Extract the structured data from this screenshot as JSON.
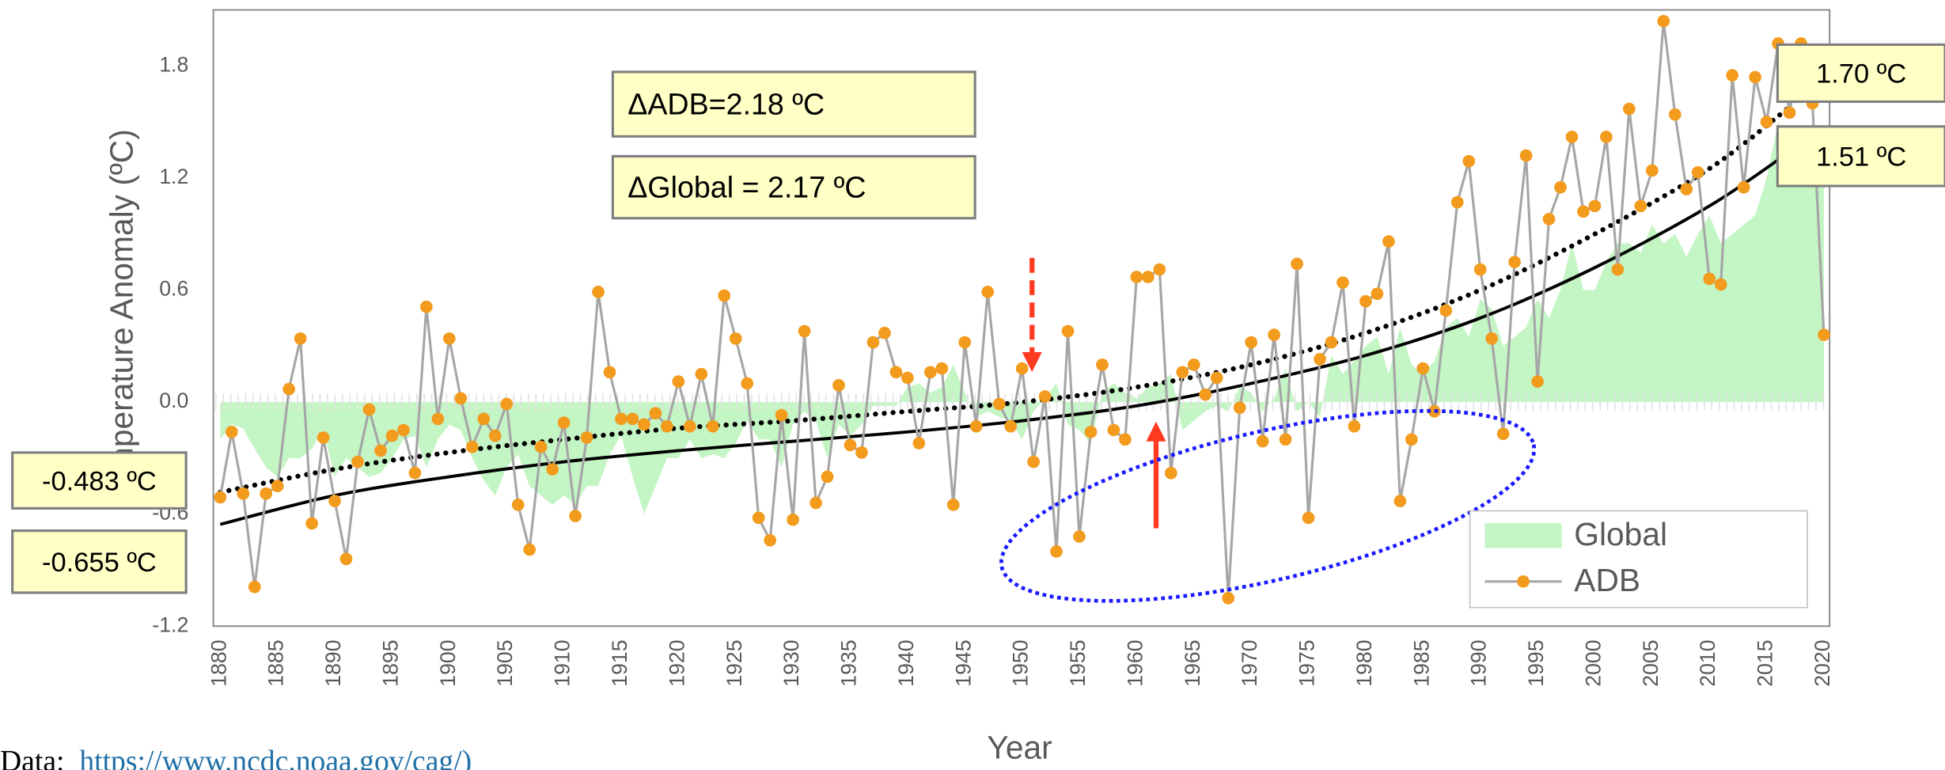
{
  "chart_data": {
    "type": "line",
    "y_label": "Temperature Anomaly (ºC)",
    "x_label": "Year",
    "xlim": [
      1879.4,
      2020.5
    ],
    "ylim": [
      -1.2,
      2.1
    ],
    "xticks": [
      1880,
      1885,
      1890,
      1895,
      1900,
      1905,
      1910,
      1915,
      1920,
      1925,
      1930,
      1935,
      1940,
      1945,
      1950,
      1955,
      1960,
      1965,
      1970,
      1975,
      1980,
      1985,
      1990,
      1995,
      2000,
      2005,
      2010,
      2015,
      2020
    ],
    "yticks": [
      -1.2,
      -0.6,
      {
        "value": 0,
        "label": "0.0"
      },
      0.6,
      1.2,
      1.8
    ],
    "grid": false,
    "legend": "lower right",
    "x": [
      1880,
      1881,
      1882,
      1883,
      1884,
      1885,
      1886,
      1887,
      1888,
      1889,
      1890,
      1891,
      1892,
      1893,
      1894,
      1895,
      1896,
      1897,
      1898,
      1899,
      1900,
      1901,
      1902,
      1903,
      1904,
      1905,
      1906,
      1907,
      1908,
      1909,
      1910,
      1911,
      1912,
      1913,
      1914,
      1915,
      1916,
      1917,
      1918,
      1919,
      1920,
      1921,
      1922,
      1923,
      1924,
      1925,
      1926,
      1927,
      1928,
      1929,
      1930,
      1931,
      1932,
      1933,
      1934,
      1935,
      1936,
      1937,
      1938,
      1939,
      1940,
      1941,
      1942,
      1943,
      1944,
      1945,
      1946,
      1947,
      1948,
      1949,
      1950,
      1951,
      1952,
      1953,
      1954,
      1955,
      1956,
      1957,
      1958,
      1959,
      1960,
      1961,
      1962,
      1963,
      1964,
      1965,
      1966,
      1967,
      1968,
      1969,
      1970,
      1971,
      1972,
      1973,
      1974,
      1975,
      1976,
      1977,
      1978,
      1979,
      1980,
      1981,
      1982,
      1983,
      1984,
      1985,
      1986,
      1987,
      1988,
      1989,
      1990,
      1991,
      1992,
      1993,
      1994,
      1995,
      1996,
      1997,
      1998,
      1999,
      2000,
      2001,
      2002,
      2003,
      2004,
      2005,
      2006,
      2007,
      2008,
      2009,
      2010,
      2011,
      2012,
      2013,
      2014,
      2015,
      2016,
      2017,
      2018,
      2019,
      2020
    ],
    "series": [
      {
        "name": "Global",
        "type": "area",
        "color": "#c4f5c4",
        "values": [
          -0.2,
          -0.12,
          -0.14,
          -0.25,
          -0.35,
          -0.4,
          -0.3,
          -0.3,
          -0.25,
          -0.15,
          -0.4,
          -0.3,
          -0.35,
          -0.4,
          -0.38,
          -0.3,
          -0.2,
          -0.18,
          -0.35,
          -0.2,
          -0.12,
          -0.15,
          -0.3,
          -0.42,
          -0.5,
          -0.35,
          -0.28,
          -0.45,
          -0.5,
          -0.55,
          -0.5,
          -0.55,
          -0.45,
          -0.45,
          -0.28,
          -0.18,
          -0.4,
          -0.6,
          -0.45,
          -0.3,
          -0.3,
          -0.2,
          -0.3,
          -0.28,
          -0.3,
          -0.22,
          -0.1,
          -0.2,
          -0.2,
          -0.35,
          -0.12,
          -0.05,
          -0.1,
          -0.3,
          -0.12,
          -0.18,
          -0.12,
          -0.02,
          -0.02,
          -0.02,
          0.08,
          0.1,
          0.05,
          0.08,
          0.2,
          0.05,
          -0.08,
          -0.05,
          -0.08,
          -0.1,
          -0.2,
          -0.05,
          0.02,
          0.1,
          -0.12,
          -0.15,
          -0.22,
          0.05,
          0.1,
          0.05,
          0.02,
          0.08,
          0.1,
          0.15,
          -0.15,
          -0.1,
          -0.05,
          -0.02,
          -0.05,
          0.08,
          0.05,
          -0.05,
          0.02,
          0.18,
          -0.05,
          0.0,
          -0.08,
          0.25,
          0.15,
          0.22,
          0.3,
          0.35,
          0.15,
          0.4,
          0.2,
          0.15,
          0.22,
          0.4,
          0.45,
          0.35,
          0.55,
          0.5,
          0.3,
          0.35,
          0.4,
          0.55,
          0.45,
          0.6,
          0.85,
          0.6,
          0.6,
          0.75,
          0.85,
          0.85,
          0.8,
          0.95,
          0.85,
          0.9,
          0.78,
          0.9,
          1.0,
          0.85,
          0.9,
          0.95,
          1.0,
          1.2,
          1.5,
          1.4,
          1.25,
          1.4,
          1.45
        ]
      },
      {
        "name": "ADB",
        "type": "line",
        "color": "#a6a6a6",
        "marker_color": "#f29b1d",
        "values": [
          -0.51,
          -0.16,
          -0.49,
          -0.99,
          -0.49,
          -0.45,
          0.07,
          0.34,
          -0.65,
          -0.19,
          -0.53,
          -0.84,
          -0.32,
          -0.04,
          -0.26,
          -0.18,
          -0.15,
          -0.38,
          0.51,
          -0.09,
          0.34,
          0.02,
          -0.24,
          -0.09,
          -0.18,
          -0.01,
          -0.55,
          -0.79,
          -0.24,
          -0.36,
          -0.11,
          -0.61,
          -0.19,
          0.59,
          0.16,
          -0.09,
          -0.09,
          -0.12,
          -0.06,
          -0.13,
          0.11,
          -0.13,
          0.15,
          -0.13,
          0.57,
          0.34,
          0.1,
          -0.62,
          -0.74,
          -0.07,
          -0.63,
          0.38,
          -0.54,
          -0.4,
          0.09,
          -0.23,
          -0.27,
          0.32,
          0.37,
          0.16,
          0.13,
          -0.22,
          0.16,
          0.18,
          -0.55,
          0.32,
          -0.13,
          0.59,
          -0.01,
          -0.13,
          0.18,
          -0.32,
          0.03,
          -0.8,
          0.38,
          -0.72,
          -0.16,
          0.2,
          -0.15,
          -0.2,
          0.67,
          0.67,
          0.71,
          -0.38,
          0.16,
          0.2,
          0.04,
          0.13,
          -1.05,
          -0.03,
          0.32,
          -0.21,
          0.36,
          -0.2,
          0.74,
          -0.62,
          0.23,
          0.32,
          0.64,
          -0.13,
          0.54,
          0.58,
          0.86,
          -0.53,
          -0.2,
          0.18,
          -0.05,
          0.49,
          1.07,
          1.29,
          0.71,
          0.34,
          -0.17,
          0.75,
          1.32,
          0.11,
          0.98,
          1.15,
          1.42,
          1.02,
          1.05,
          1.42,
          0.71,
          1.57,
          1.05,
          1.24,
          2.04,
          1.54,
          1.14,
          1.23,
          0.66,
          0.63,
          1.75,
          1.15,
          1.74,
          1.5,
          1.92,
          1.55,
          1.92,
          1.6,
          0.36
        ]
      }
    ],
    "trend_lines": [
      {
        "style": "dotted",
        "color": "#000000",
        "x": [
          1880,
          1890,
          1900,
          1910,
          1920,
          1930,
          1940,
          1950,
          1960,
          1970,
          1980,
          1990,
          2000,
          2010,
          2017
        ],
        "values": [
          -0.483,
          -0.36,
          -0.27,
          -0.2,
          -0.14,
          -0.1,
          -0.05,
          0.0,
          0.08,
          0.2,
          0.37,
          0.6,
          0.9,
          1.25,
          1.58
        ]
      },
      {
        "style": "solid",
        "color": "#000000",
        "x": [
          1880,
          1890,
          1900,
          1910,
          1920,
          1930,
          1940,
          1950,
          1960,
          1970,
          1980,
          1990,
          2000,
          2010,
          2017
        ],
        "values": [
          -0.655,
          -0.5,
          -0.4,
          -0.32,
          -0.26,
          -0.21,
          -0.16,
          -0.1,
          -0.02,
          0.1,
          0.25,
          0.45,
          0.72,
          1.05,
          1.34
        ]
      }
    ],
    "annotations": [
      "ΔADB=2.18 ºC",
      "ΔGlobal = 2.17 ºC",
      "1.70 ºC",
      "1.51 ºC",
      "-0.483 ºC",
      "-0.655 ºC"
    ],
    "source_label": "Data:",
    "source_url": "https://www.ncdc.noaa.gov/cag/)"
  }
}
